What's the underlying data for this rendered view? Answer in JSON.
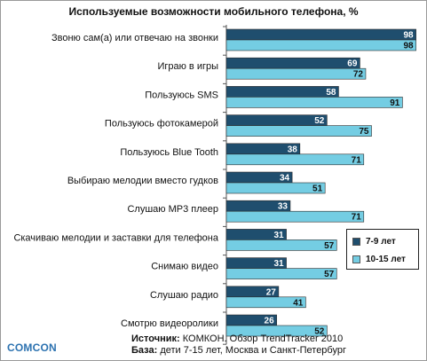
{
  "chart_data": {
    "type": "bar",
    "orientation": "horizontal",
    "title": "Используемые возможности мобильного телефона, %",
    "categories": [
      "Звоню сам(а) или отвечаю на звонки",
      "Играю в игры",
      "Пользуюсь SMS",
      "Пользуюсь фотокамерой",
      "Пользуюсь Blue Tooth",
      "Выбираю мелодии вместо гудков",
      "Слушаю MP3 плеер",
      "Скачиваю мелодии и заставки для телефона",
      "Снимаю видео",
      "Слушаю радио",
      "Смотрю видеоролики"
    ],
    "series": [
      {
        "name": "7-9 лет",
        "color": "#1f4e6e",
        "values": [
          98,
          69,
          58,
          52,
          38,
          34,
          33,
          31,
          31,
          27,
          26
        ]
      },
      {
        "name": "10-15 лет",
        "color": "#74cde3",
        "values": [
          98,
          72,
          91,
          75,
          71,
          51,
          71,
          57,
          57,
          41,
          52
        ]
      }
    ],
    "xlim": [
      0,
      100
    ],
    "grid": false,
    "legend_position": "right",
    "data_labels": true
  },
  "footer": {
    "source_label": "Источник:",
    "source_text": "КОМКОН. Обзор TrendTracker 2010",
    "base_label": "База:",
    "base_text": "дети 7-15 лет, Москва и Санкт-Петербург"
  },
  "brand": {
    "logo_text": "COMCON",
    "color": "#2c72b0"
  }
}
